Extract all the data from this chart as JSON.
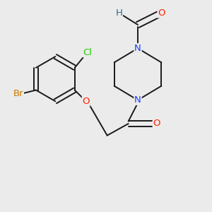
{
  "background_color": "#ebebeb",
  "atom_colors": {
    "C": "#1a1a1a",
    "H": "#2f6b8a",
    "N": "#1a3aff",
    "O": "#ff2200",
    "Cl": "#22cc00",
    "Br": "#cc7700"
  },
  "font_size": 9.5,
  "bond_color": "#1a1a1a",
  "bond_lw": 1.4
}
